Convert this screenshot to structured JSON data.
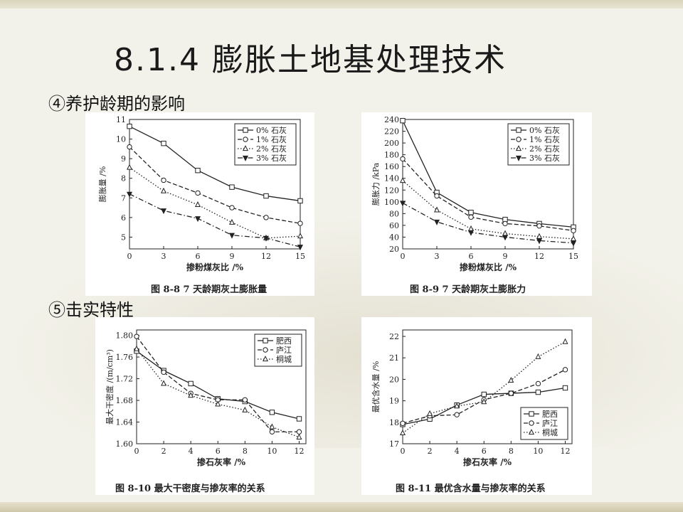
{
  "slide": {
    "title": "8.1.4 膨胀土地基处理技术",
    "section4": "④养护龄期的影响",
    "section5": "⑤击实特性"
  },
  "chart_data": [
    {
      "type": "line",
      "caption": "图 8-8   7 天龄期灰土膨胀量",
      "xlabel": "掺粉煤灰比 /%",
      "ylabel": "膨胀量 /%",
      "x": [
        0,
        3,
        6,
        9,
        12,
        15
      ],
      "xticks": [
        0,
        3,
        6,
        9,
        12,
        15
      ],
      "yticks": [
        4,
        5,
        6,
        7,
        8,
        9,
        10,
        11
      ],
      "xlim": [
        0,
        15
      ],
      "ylim": [
        4.4,
        11
      ],
      "legend_position": "top-right",
      "series": [
        {
          "name": "0% 石灰",
          "marker": "square",
          "dash": "solid",
          "values": [
            10.65,
            9.78,
            8.4,
            7.55,
            7.1,
            6.85
          ]
        },
        {
          "name": "1% 石灰",
          "marker": "circle",
          "dash": "dashed",
          "values": [
            9.6,
            7.9,
            7.25,
            6.5,
            6.0,
            5.7
          ]
        },
        {
          "name": "2% 石灰",
          "marker": "triangle",
          "dash": "dotted",
          "values": [
            8.55,
            7.35,
            6.65,
            5.75,
            4.95,
            5.05
          ]
        },
        {
          "name": "3% 石灰",
          "marker": "triangle-down",
          "dash": "dashdot",
          "values": [
            7.2,
            6.35,
            5.95,
            5.1,
            4.95,
            4.5
          ]
        }
      ]
    },
    {
      "type": "line",
      "caption": "图 8-9   7 天龄期灰土膨胀力",
      "xlabel": "掺粉煤灰比 /%",
      "ylabel": "膨胀力 /kPa",
      "x": [
        0,
        3,
        6,
        9,
        12,
        15
      ],
      "xticks": [
        0,
        3,
        6,
        9,
        12,
        15
      ],
      "yticks": [
        20,
        40,
        60,
        80,
        100,
        120,
        140,
        160,
        180,
        200,
        220,
        240
      ],
      "xlim": [
        0,
        15
      ],
      "ylim": [
        20,
        240
      ],
      "legend_position": "top-right",
      "series": [
        {
          "name": "0% 石灰",
          "marker": "square",
          "dash": "solid",
          "values": [
            238,
            116,
            82,
            70,
            63,
            57
          ]
        },
        {
          "name": "1% 石灰",
          "marker": "circle",
          "dash": "dashed",
          "values": [
            173,
            110,
            74,
            63,
            59,
            51
          ]
        },
        {
          "name": "2% 石灰",
          "marker": "triangle",
          "dash": "dotted",
          "values": [
            136,
            86,
            54,
            46,
            41,
            37
          ]
        },
        {
          "name": "3% 石灰",
          "marker": "triangle-down",
          "dash": "dashdot",
          "values": [
            98,
            66,
            48,
            40,
            34,
            30
          ]
        }
      ]
    },
    {
      "type": "line",
      "caption": "图 8-10   最大干密度与掺灰率的关系",
      "xlabel": "掺石灰率 /%",
      "ylabel": "最大干密度 /(m/cm³)",
      "x": [
        0,
        2,
        4,
        6,
        8,
        10,
        12
      ],
      "xticks": [
        0,
        2,
        4,
        6,
        8,
        10,
        12
      ],
      "yticks": [
        "1.60",
        "1.64",
        "1.68",
        "1.72",
        "1.76",
        "1.80"
      ],
      "xlim": [
        0,
        12.5
      ],
      "ylim": [
        1.6,
        1.81
      ],
      "legend_position": "top-right",
      "series": [
        {
          "name": "肥西",
          "marker": "square",
          "dash": "solid",
          "values": [
            1.771,
            1.735,
            1.711,
            1.683,
            1.678,
            1.658,
            1.646
          ]
        },
        {
          "name": "庐江",
          "marker": "circle",
          "dash": "dashed",
          "values": [
            1.798,
            1.732,
            1.693,
            1.681,
            1.681,
            1.622,
            1.622
          ]
        },
        {
          "name": "桐城",
          "marker": "triangle",
          "dash": "dotted",
          "values": [
            1.775,
            1.711,
            1.689,
            1.673,
            1.662,
            1.631,
            1.612
          ]
        }
      ]
    },
    {
      "type": "line",
      "caption": "图 8-11   最优含水量与掺灰率的关系",
      "xlabel": "掺石灰率 /%",
      "ylabel": "最优含水量 /%",
      "x": [
        0,
        2,
        4,
        6,
        8,
        10,
        12
      ],
      "xticks": [
        0,
        2,
        4,
        6,
        8,
        10,
        12
      ],
      "yticks": [
        17,
        18,
        19,
        20,
        21,
        22
      ],
      "xlim": [
        0,
        12.5
      ],
      "ylim": [
        17,
        22.3
      ],
      "legend_position": "bottom-right",
      "series": [
        {
          "name": "肥西",
          "marker": "square",
          "dash": "solid",
          "values": [
            17.9,
            18.15,
            18.8,
            19.3,
            19.35,
            19.4,
            19.6
          ]
        },
        {
          "name": "庐江",
          "marker": "circle",
          "dash": "dashed",
          "values": [
            17.95,
            18.3,
            18.35,
            19.05,
            19.35,
            19.8,
            20.45
          ]
        },
        {
          "name": "桐城",
          "marker": "triangle",
          "dash": "dotted",
          "values": [
            17.5,
            18.4,
            18.75,
            18.95,
            19.95,
            21.05,
            21.75
          ]
        }
      ]
    }
  ]
}
